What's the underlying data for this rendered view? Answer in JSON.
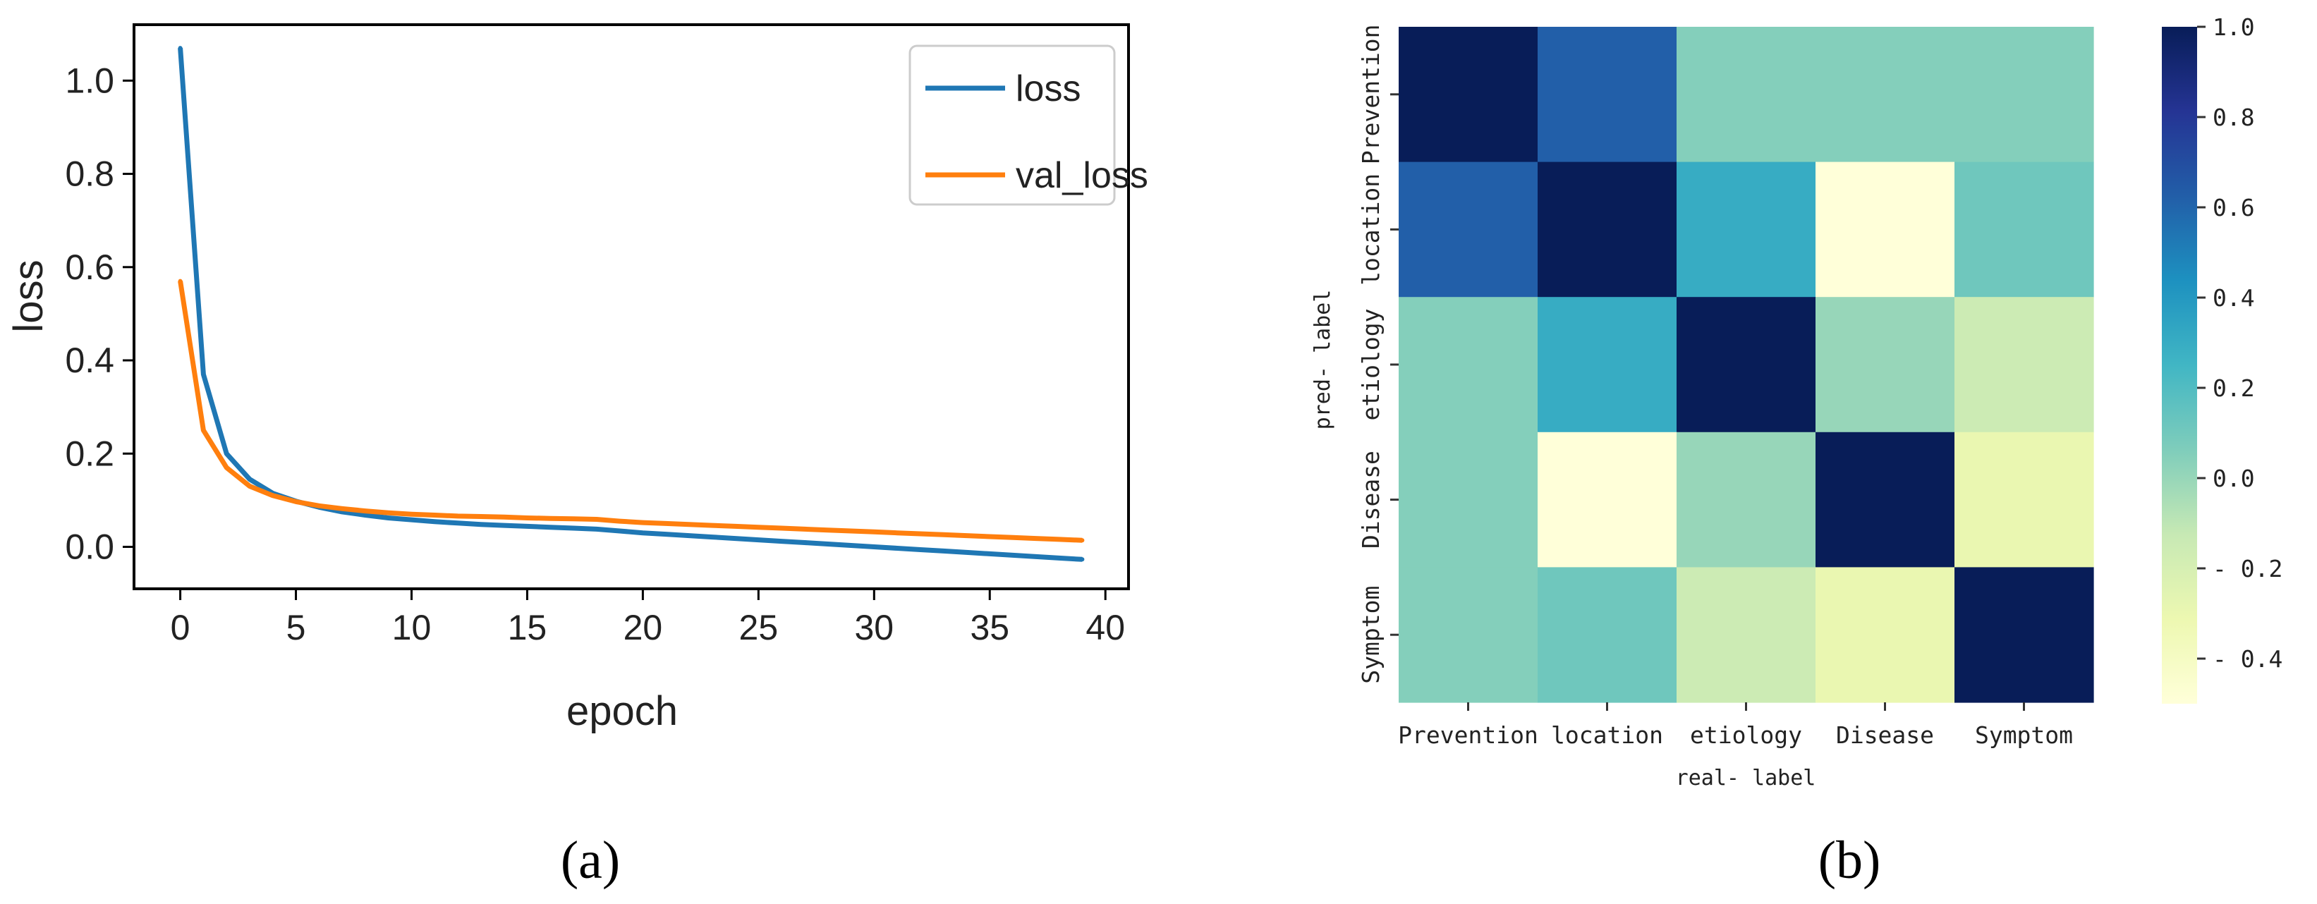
{
  "chart_data": [
    {
      "type": "line",
      "panel_label": "a",
      "title": "",
      "xlabel": "epoch",
      "ylabel": "loss",
      "xlim": [
        -2,
        41
      ],
      "ylim": [
        -0.09,
        1.12
      ],
      "xticks": [
        0,
        5,
        10,
        15,
        20,
        25,
        30,
        35,
        40
      ],
      "xtick_labels": [
        "0",
        "5",
        "10",
        "15",
        "20",
        "25",
        "30",
        "35",
        "40"
      ],
      "yticks": [
        0.0,
        0.2,
        0.4,
        0.6,
        0.8,
        1.0
      ],
      "ytick_labels": [
        "0.0",
        "0.2",
        "0.4",
        "0.6",
        "0.8",
        "1.0"
      ],
      "grid": false,
      "legend_position": "top-right",
      "series": [
        {
          "name": "loss",
          "color": "#1f77b4",
          "x": [
            0,
            1,
            2,
            3,
            4,
            5,
            6,
            7,
            8,
            9,
            10,
            11,
            12,
            13,
            14,
            15,
            16,
            17,
            18,
            19,
            20,
            21,
            22,
            23,
            24,
            25,
            26,
            27,
            28,
            29,
            30,
            31,
            32,
            33,
            34,
            35,
            36,
            37,
            38,
            39
          ],
          "values": [
            1.07,
            0.37,
            0.2,
            0.145,
            0.115,
            0.098,
            0.085,
            0.075,
            0.068,
            0.062,
            0.058,
            0.054,
            0.051,
            0.048,
            0.046,
            0.044,
            0.042,
            0.04,
            0.038,
            0.034,
            0.03,
            0.027,
            0.024,
            0.021,
            0.018,
            0.015,
            0.012,
            0.009,
            0.006,
            0.003,
            0.0,
            -0.003,
            -0.006,
            -0.009,
            -0.012,
            -0.015,
            -0.018,
            -0.021,
            -0.024,
            -0.027
          ]
        },
        {
          "name": "val_loss",
          "color": "#ff7f0e",
          "x": [
            0,
            1,
            2,
            3,
            4,
            5,
            6,
            7,
            8,
            9,
            10,
            11,
            12,
            13,
            14,
            15,
            16,
            17,
            18,
            19,
            20,
            21,
            22,
            23,
            24,
            25,
            26,
            27,
            28,
            29,
            30,
            31,
            32,
            33,
            34,
            35,
            36,
            37,
            38,
            39
          ],
          "values": [
            0.57,
            0.25,
            0.17,
            0.13,
            0.11,
            0.097,
            0.088,
            0.082,
            0.077,
            0.073,
            0.07,
            0.068,
            0.066,
            0.065,
            0.064,
            0.062,
            0.061,
            0.06,
            0.059,
            0.055,
            0.052,
            0.05,
            0.048,
            0.046,
            0.044,
            0.042,
            0.04,
            0.038,
            0.036,
            0.034,
            0.032,
            0.03,
            0.028,
            0.026,
            0.024,
            0.022,
            0.02,
            0.018,
            0.016,
            0.014
          ]
        }
      ]
    },
    {
      "type": "heatmap",
      "panel_label": "b",
      "title": "",
      "xlabel": "real- label",
      "ylabel": "pred- label",
      "x_categories": [
        "Prevention",
        "location",
        "etiology",
        "Disease",
        "Symptom"
      ],
      "y_categories": [
        "Prevention",
        "location",
        "etiology",
        "Disease",
        "Symptom"
      ],
      "values": [
        [
          1.0,
          0.62,
          0.05,
          0.05,
          0.05
        ],
        [
          0.62,
          1.0,
          0.3,
          -0.5,
          0.11
        ],
        [
          0.05,
          0.3,
          1.0,
          0.0,
          -0.15
        ],
        [
          0.05,
          -0.5,
          0.0,
          1.0,
          -0.3
        ],
        [
          0.05,
          0.11,
          -0.15,
          -0.3,
          1.0
        ]
      ],
      "colormap": "YlGnBu",
      "colorbar_range": [
        -0.5,
        1.0
      ],
      "colorbar_ticks": [
        1.0,
        0.8,
        0.6,
        0.4,
        0.2,
        0.0,
        -0.2,
        -0.4
      ],
      "colorbar_tick_labels": [
        "1.0",
        "0.8",
        "0.6",
        "0.4",
        "0.2",
        "0.0",
        "- 0.2",
        "- 0.4"
      ],
      "colorbar_stops": [
        "#ffffd9",
        "#edf8b1",
        "#c7e9b4",
        "#7fcdbb",
        "#41b6c4",
        "#1d91c0",
        "#225ea8",
        "#253494",
        "#081d58"
      ]
    }
  ],
  "captions": {
    "a": "(a)",
    "b": "(b)"
  }
}
